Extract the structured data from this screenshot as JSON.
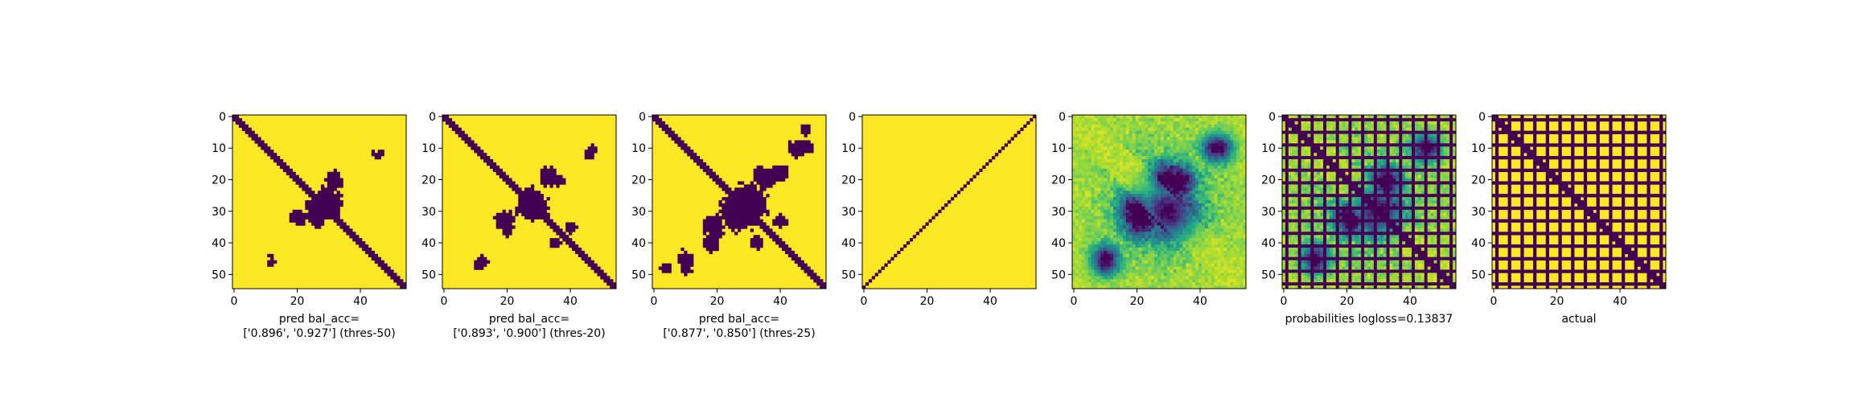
{
  "chart_data": [
    {
      "type": "heatmap",
      "subtype": "binary-matrix",
      "xlabel_lines": [
        "pred bal_acc=",
        "['0.896', '0.927'] (thres-50)"
      ],
      "xlim": [
        0,
        55
      ],
      "ylim": [
        55,
        0
      ],
      "x_ticks": [
        "0",
        "20",
        "40"
      ],
      "y_ticks": [
        "0",
        "10",
        "20",
        "30",
        "40",
        "50"
      ],
      "colors": {
        "low": "#440154",
        "high": "#fde725"
      },
      "features": {
        "diagonal_band": true,
        "band_width": 3,
        "blobs": [
          {
            "center": [
              30,
              27
            ],
            "radius": 5
          },
          {
            "center": [
              32,
              20
            ],
            "radius": 3
          },
          {
            "center": [
              44,
              11
            ],
            "radius": 1
          },
          {
            "center": [
              12,
              46
            ],
            "radius": 1.5
          }
        ],
        "grid_lines": false
      }
    },
    {
      "type": "heatmap",
      "subtype": "binary-matrix",
      "xlabel_lines": [
        "pred bal_acc=",
        "['0.893', '0.900'] (thres-20)"
      ],
      "xlim": [
        0,
        55
      ],
      "ylim": [
        55,
        0
      ],
      "x_ticks": [
        "0",
        "20",
        "40"
      ],
      "y_ticks": [
        "0",
        "10",
        "20",
        "30",
        "40",
        "50"
      ],
      "colors": {
        "low": "#440154",
        "high": "#fde725"
      },
      "features": {
        "diagonal_band": true,
        "band_width": 3,
        "blobs": [
          {
            "center": [
              28,
              28
            ],
            "radius": 6
          },
          {
            "center": [
              33,
              19
            ],
            "radius": 3.5
          },
          {
            "center": [
              47,
              11
            ],
            "radius": 2
          },
          {
            "center": [
              12,
              46
            ],
            "radius": 2
          },
          {
            "center": [
              20,
              36
            ],
            "radius": 2.5
          },
          {
            "center": [
              40,
              35
            ],
            "radius": 2
          }
        ],
        "grid_lines": false
      }
    },
    {
      "type": "heatmap",
      "subtype": "binary-matrix",
      "xlabel_lines": [
        "pred bal_acc=",
        "['0.877', '0.850'] (thres-25)"
      ],
      "xlim": [
        0,
        55
      ],
      "ylim": [
        55,
        0
      ],
      "x_ticks": [
        "0",
        "20",
        "40"
      ],
      "y_ticks": [
        "0",
        "10",
        "20",
        "30",
        "40",
        "50"
      ],
      "colors": {
        "low": "#440154",
        "high": "#fde725"
      },
      "features": {
        "diagonal_band": true,
        "band_width": 3,
        "blobs": [
          {
            "center": [
              27,
              30
            ],
            "radius": 7
          },
          {
            "center": [
              35,
              19
            ],
            "radius": 4
          },
          {
            "center": [
              45,
              10
            ],
            "radius": 3
          },
          {
            "center": [
              18,
              40
            ],
            "radius": 3
          },
          {
            "center": [
              10,
              48
            ],
            "radius": 2.5
          },
          {
            "center": [
              40,
              33
            ],
            "radius": 2.5
          },
          {
            "center": [
              48,
              4
            ],
            "radius": 2
          }
        ],
        "grid_lines": false
      }
    },
    {
      "type": "heatmap",
      "subtype": "binary-matrix",
      "xlabel_lines": [],
      "xlim": [
        0,
        55
      ],
      "ylim": [
        55,
        0
      ],
      "x_ticks": [
        "0",
        "20",
        "40"
      ],
      "y_ticks": [
        "0",
        "10",
        "20",
        "30",
        "40",
        "50"
      ],
      "colors": {
        "low": "#440154",
        "high": "#fde725"
      },
      "features": {
        "diagonal_band": false,
        "anti_diagonal_line": true,
        "blobs": [],
        "grid_lines": false
      }
    },
    {
      "type": "heatmap",
      "subtype": "continuous-matrix",
      "xlabel_lines": [],
      "xlim": [
        0,
        55
      ],
      "ylim": [
        55,
        0
      ],
      "x_ticks": [
        "0",
        "20",
        "40"
      ],
      "y_ticks": [
        "0",
        "10",
        "20",
        "30",
        "40",
        "50"
      ],
      "colormap": "viridis",
      "features": {
        "diagonal_band": false,
        "blobs": [
          {
            "center": [
              30,
              30
            ],
            "radius": 6
          },
          {
            "center": [
              33,
              21
            ],
            "radius": 4
          },
          {
            "center": [
              20,
              30
            ],
            "radius": 4
          },
          {
            "center": [
              45,
              10
            ],
            "radius": 3
          },
          {
            "center": [
              10,
              46
            ],
            "radius": 3
          }
        ],
        "grid_lines": false
      }
    },
    {
      "type": "heatmap",
      "subtype": "continuous-matrix",
      "xlabel_lines": [
        "probabilities logloss=0.13837"
      ],
      "xlim": [
        0,
        55
      ],
      "ylim": [
        55,
        0
      ],
      "x_ticks": [
        "0",
        "20",
        "40"
      ],
      "y_ticks": [
        "0",
        "10",
        "20",
        "30",
        "40",
        "50"
      ],
      "colormap": "viridis",
      "features": {
        "diagonal_band": true,
        "band_width": 3,
        "blobs": [
          {
            "center": [
              30,
              30
            ],
            "radius": 5
          },
          {
            "center": [
              33,
              21
            ],
            "radius": 3
          },
          {
            "center": [
              20,
              32
            ],
            "radius": 3
          },
          {
            "center": [
              45,
              10
            ],
            "radius": 3
          },
          {
            "center": [
              10,
              46
            ],
            "radius": 2.5
          }
        ],
        "grid_lines": true,
        "grid_every": 4
      }
    },
    {
      "type": "heatmap",
      "subtype": "binary-matrix",
      "xlabel_lines": [
        "actual"
      ],
      "xlim": [
        0,
        55
      ],
      "ylim": [
        55,
        0
      ],
      "x_ticks": [
        "0",
        "20",
        "40"
      ],
      "y_ticks": [
        "0",
        "10",
        "20",
        "30",
        "40",
        "50"
      ],
      "colors": {
        "low": "#440154",
        "high": "#fde725"
      },
      "features": {
        "diagonal_band": true,
        "band_width": 2,
        "blobs": [],
        "grid_lines": true,
        "grid_every": 4
      }
    }
  ]
}
